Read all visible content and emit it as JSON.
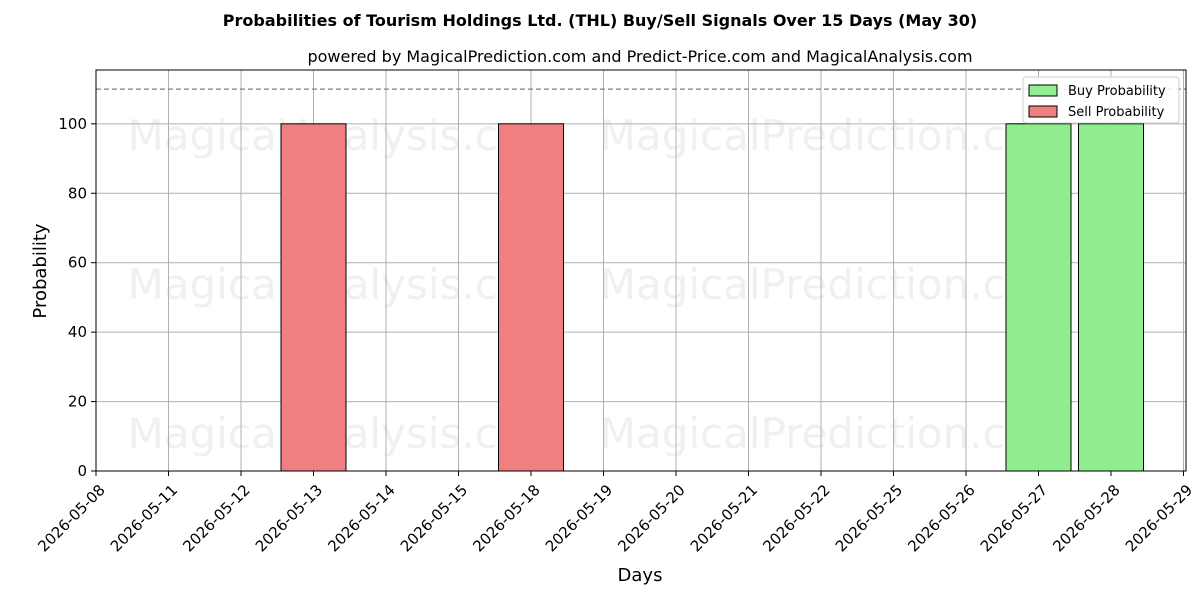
{
  "chart_data": {
    "type": "bar",
    "title": "Probabilities of Tourism Holdings Ltd. (THL) Buy/Sell Signals Over 15 Days (May 30)",
    "subtitle": "powered by MagicalPrediction.com and Predict-Price.com and MagicalAnalysis.com",
    "xlabel": "Days",
    "ylabel": "Probability",
    "x_ticks": [
      "2026-05-08",
      "2026-05-11",
      "2026-05-12",
      "2026-05-13",
      "2026-05-14",
      "2026-05-15",
      "2026-05-18",
      "2026-05-19",
      "2026-05-20",
      "2026-05-21",
      "2026-05-22",
      "2026-05-25",
      "2026-05-26",
      "2026-05-27",
      "2026-05-28",
      "2026-05-29"
    ],
    "y_ticks": [
      0,
      20,
      40,
      60,
      80,
      100
    ],
    "ylim": [
      0,
      115.5
    ],
    "reference_line": 110,
    "grid": true,
    "legend_position": "top-right",
    "series": [
      {
        "name": "Buy Probability",
        "color": "#90ee90",
        "bars": [
          {
            "x": "2026-05-27",
            "value": 100
          },
          {
            "x": "2026-05-28",
            "value": 100
          }
        ]
      },
      {
        "name": "Sell Probability",
        "color": "#f08080",
        "bars": [
          {
            "x": "2026-05-13",
            "value": 100
          },
          {
            "x": "2026-05-18",
            "value": 100
          }
        ]
      }
    ],
    "watermarks": [
      "MagicalAnalysis.com",
      "MagicalPrediction.com",
      "MagicalAnalysis.com",
      "MagicalPrediction.com",
      "MagicalAnalysis.com",
      "MagicalPrediction.com"
    ]
  }
}
